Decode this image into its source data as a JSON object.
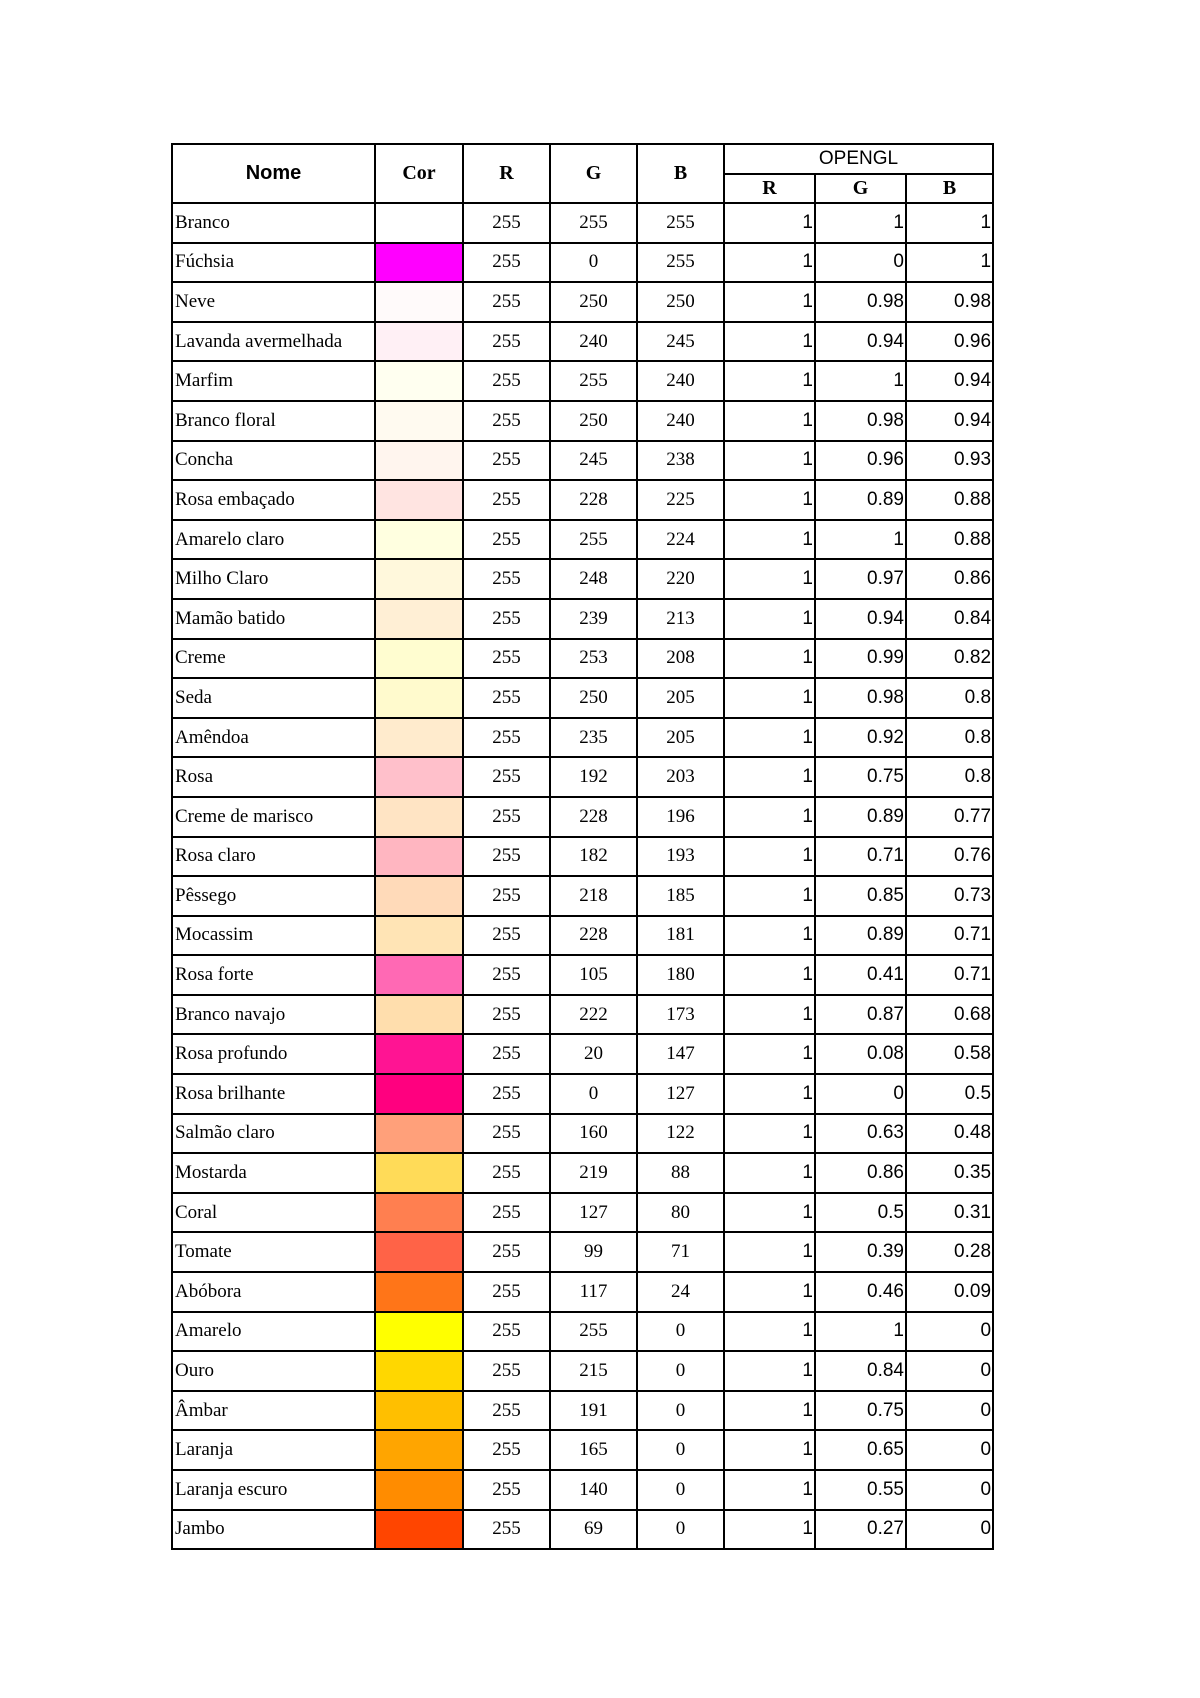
{
  "headers": {
    "nome": "Nome",
    "cor": "Cor",
    "r": "R",
    "g": "G",
    "b": "B",
    "opengl": "OPENGL",
    "opengl_r": "R",
    "opengl_g": "G",
    "opengl_b": "B"
  },
  "rows": [
    {
      "name": "Branco",
      "color": "#FFFFFF",
      "r": "255",
      "g": "255",
      "b": "255",
      "gl_r": "1",
      "gl_g": "1",
      "gl_b": "1"
    },
    {
      "name": "Fúchsia",
      "color": "#FF00FF",
      "r": "255",
      "g": "0",
      "b": "255",
      "gl_r": "1",
      "gl_g": "0",
      "gl_b": "1"
    },
    {
      "name": "Neve",
      "color": "#FFFAFA",
      "r": "255",
      "g": "250",
      "b": "250",
      "gl_r": "1",
      "gl_g": "0.98",
      "gl_b": "0.98"
    },
    {
      "name": "Lavanda avermelhada",
      "color": "#FFF0F5",
      "r": "255",
      "g": "240",
      "b": "245",
      "gl_r": "1",
      "gl_g": "0.94",
      "gl_b": "0.96"
    },
    {
      "name": "Marfim",
      "color": "#FFFFF0",
      "r": "255",
      "g": "255",
      "b": "240",
      "gl_r": "1",
      "gl_g": "1",
      "gl_b": "0.94"
    },
    {
      "name": "Branco floral",
      "color": "#FFFAF0",
      "r": "255",
      "g": "250",
      "b": "240",
      "gl_r": "1",
      "gl_g": "0.98",
      "gl_b": "0.94"
    },
    {
      "name": "Concha",
      "color": "#FFF5EE",
      "r": "255",
      "g": "245",
      "b": "238",
      "gl_r": "1",
      "gl_g": "0.96",
      "gl_b": "0.93"
    },
    {
      "name": "Rosa embaçado",
      "color": "#FFE4E1",
      "r": "255",
      "g": "228",
      "b": "225",
      "gl_r": "1",
      "gl_g": "0.89",
      "gl_b": "0.88"
    },
    {
      "name": "Amarelo claro",
      "color": "#FFFFE0",
      "r": "255",
      "g": "255",
      "b": "224",
      "gl_r": "1",
      "gl_g": "1",
      "gl_b": "0.88"
    },
    {
      "name": "Milho Claro",
      "color": "#FFF8DC",
      "r": "255",
      "g": "248",
      "b": "220",
      "gl_r": "1",
      "gl_g": "0.97",
      "gl_b": "0.86"
    },
    {
      "name": "Mamão batido",
      "color": "#FFEFD5",
      "r": "255",
      "g": "239",
      "b": "213",
      "gl_r": "1",
      "gl_g": "0.94",
      "gl_b": "0.84"
    },
    {
      "name": "Creme",
      "color": "#FFFDD0",
      "r": "255",
      "g": "253",
      "b": "208",
      "gl_r": "1",
      "gl_g": "0.99",
      "gl_b": "0.82"
    },
    {
      "name": "Seda",
      "color": "#FFFACD",
      "r": "255",
      "g": "250",
      "b": "205",
      "gl_r": "1",
      "gl_g": "0.98",
      "gl_b": "0.8"
    },
    {
      "name": "Amêndoa",
      "color": "#FFEBCD",
      "r": "255",
      "g": "235",
      "b": "205",
      "gl_r": "1",
      "gl_g": "0.92",
      "gl_b": "0.8"
    },
    {
      "name": "Rosa",
      "color": "#FFC0CB",
      "r": "255",
      "g": "192",
      "b": "203",
      "gl_r": "1",
      "gl_g": "0.75",
      "gl_b": "0.8"
    },
    {
      "name": "Creme de marisco",
      "color": "#FFE4C4",
      "r": "255",
      "g": "228",
      "b": "196",
      "gl_r": "1",
      "gl_g": "0.89",
      "gl_b": "0.77"
    },
    {
      "name": "Rosa claro",
      "color": "#FFB6C1",
      "r": "255",
      "g": "182",
      "b": "193",
      "gl_r": "1",
      "gl_g": "0.71",
      "gl_b": "0.76"
    },
    {
      "name": "Pêssego",
      "color": "#FFDAB9",
      "r": "255",
      "g": "218",
      "b": "185",
      "gl_r": "1",
      "gl_g": "0.85",
      "gl_b": "0.73"
    },
    {
      "name": "Mocassim",
      "color": "#FFE4B5",
      "r": "255",
      "g": "228",
      "b": "181",
      "gl_r": "1",
      "gl_g": "0.89",
      "gl_b": "0.71"
    },
    {
      "name": "Rosa forte",
      "color": "#FF69B4",
      "r": "255",
      "g": "105",
      "b": "180",
      "gl_r": "1",
      "gl_g": "0.41",
      "gl_b": "0.71"
    },
    {
      "name": "Branco navajo",
      "color": "#FFDEAD",
      "r": "255",
      "g": "222",
      "b": "173",
      "gl_r": "1",
      "gl_g": "0.87",
      "gl_b": "0.68"
    },
    {
      "name": "Rosa profundo",
      "color": "#FF1493",
      "r": "255",
      "g": "20",
      "b": "147",
      "gl_r": "1",
      "gl_g": "0.08",
      "gl_b": "0.58"
    },
    {
      "name": "Rosa brilhante",
      "color": "#FF007F",
      "r": "255",
      "g": "0",
      "b": "127",
      "gl_r": "1",
      "gl_g": "0",
      "gl_b": "0.5"
    },
    {
      "name": "Salmão claro",
      "color": "#FFA07A",
      "r": "255",
      "g": "160",
      "b": "122",
      "gl_r": "1",
      "gl_g": "0.63",
      "gl_b": "0.48"
    },
    {
      "name": "Mostarda",
      "color": "#FFDB58",
      "r": "255",
      "g": "219",
      "b": "88",
      "gl_r": "1",
      "gl_g": "0.86",
      "gl_b": "0.35"
    },
    {
      "name": "Coral",
      "color": "#FF7F50",
      "r": "255",
      "g": "127",
      "b": "80",
      "gl_r": "1",
      "gl_g": "0.5",
      "gl_b": "0.31"
    },
    {
      "name": "Tomate",
      "color": "#FF6347",
      "r": "255",
      "g": "99",
      "b": "71",
      "gl_r": "1",
      "gl_g": "0.39",
      "gl_b": "0.28"
    },
    {
      "name": "Abóbora",
      "color": "#FF7518",
      "r": "255",
      "g": "117",
      "b": "24",
      "gl_r": "1",
      "gl_g": "0.46",
      "gl_b": "0.09"
    },
    {
      "name": "Amarelo",
      "color": "#FFFF00",
      "r": "255",
      "g": "255",
      "b": "0",
      "gl_r": "1",
      "gl_g": "1",
      "gl_b": "0"
    },
    {
      "name": "Ouro",
      "color": "#FFD700",
      "r": "255",
      "g": "215",
      "b": "0",
      "gl_r": "1",
      "gl_g": "0.84",
      "gl_b": "0"
    },
    {
      "name": "Âmbar",
      "color": "#FFBF00",
      "r": "255",
      "g": "191",
      "b": "0",
      "gl_r": "1",
      "gl_g": "0.75",
      "gl_b": "0"
    },
    {
      "name": "Laranja",
      "color": "#FFA500",
      "r": "255",
      "g": "165",
      "b": "0",
      "gl_r": "1",
      "gl_g": "0.65",
      "gl_b": "0"
    },
    {
      "name": "Laranja escuro",
      "color": "#FF8C00",
      "r": "255",
      "g": "140",
      "b": "0",
      "gl_r": "1",
      "gl_g": "0.55",
      "gl_b": "0"
    },
    {
      "name": "Jambo",
      "color": "#FF4500",
      "r": "255",
      "g": "69",
      "b": "0",
      "gl_r": "1",
      "gl_g": "0.27",
      "gl_b": "0"
    }
  ]
}
